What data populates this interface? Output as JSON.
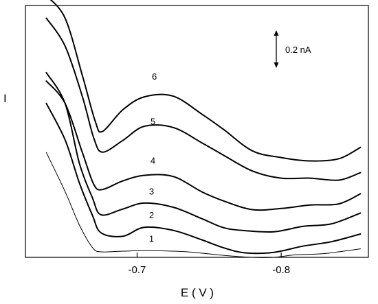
{
  "chart_data": {
    "type": "line",
    "title": "",
    "xlabel": "E ( V )",
    "ylabel": "I",
    "xlim": [
      -0.6225,
      -0.8605
    ],
    "ylim": [
      0.0,
      1.8
    ],
    "x_ticks": [
      -0.7,
      -0.8
    ],
    "x_tick_labels": [
      "-0.7",
      "-0.8"
    ],
    "y_ticks_shown": false,
    "grid": false,
    "legend": "none",
    "scale_bar": {
      "label": "0.2 nA",
      "value": 0.2
    },
    "series": [
      {
        "name": "1",
        "stroke_width": 1,
        "points": [
          [
            -0.637,
            0.75
          ],
          [
            -0.65,
            0.47
          ],
          [
            -0.66,
            0.23
          ],
          [
            -0.669,
            0.07
          ],
          [
            -0.675,
            0.039
          ],
          [
            -0.69,
            0.044
          ],
          [
            -0.71,
            0.048
          ],
          [
            -0.735,
            0.039
          ],
          [
            -0.76,
            0.014
          ],
          [
            -0.78,
            0.0
          ],
          [
            -0.795,
            0.0
          ],
          [
            -0.81,
            0.018
          ],
          [
            -0.83,
            0.027
          ],
          [
            -0.855,
            0.061
          ]
        ]
      },
      {
        "name": "2",
        "stroke_width": 2,
        "points": [
          [
            -0.637,
            1.1
          ],
          [
            -0.65,
            0.84
          ],
          [
            -0.66,
            0.53
          ],
          [
            -0.669,
            0.3
          ],
          [
            -0.675,
            0.175
          ],
          [
            -0.69,
            0.15
          ],
          [
            -0.705,
            0.215
          ],
          [
            -0.725,
            0.193
          ],
          [
            -0.745,
            0.125
          ],
          [
            -0.76,
            0.068
          ],
          [
            -0.775,
            0.032
          ],
          [
            -0.795,
            0.036
          ],
          [
            -0.815,
            0.08
          ],
          [
            -0.835,
            0.112
          ],
          [
            -0.855,
            0.167
          ]
        ]
      },
      {
        "name": "3",
        "stroke_width": 2,
        "points": [
          [
            -0.637,
            1.32
          ],
          [
            -0.65,
            1.1
          ],
          [
            -0.66,
            0.67
          ],
          [
            -0.669,
            0.425
          ],
          [
            -0.675,
            0.304
          ],
          [
            -0.69,
            0.345
          ],
          [
            -0.705,
            0.388
          ],
          [
            -0.725,
            0.358
          ],
          [
            -0.745,
            0.276
          ],
          [
            -0.76,
            0.212
          ],
          [
            -0.775,
            0.191
          ],
          [
            -0.795,
            0.183
          ],
          [
            -0.815,
            0.221
          ],
          [
            -0.835,
            0.24
          ],
          [
            -0.855,
            0.317
          ]
        ]
      },
      {
        "name": "4",
        "stroke_width": 2,
        "points": [
          [
            -0.637,
            1.26
          ],
          [
            -0.65,
            1.1
          ],
          [
            -0.662,
            0.75
          ],
          [
            -0.67,
            0.52
          ],
          [
            -0.676,
            0.485
          ],
          [
            -0.69,
            0.546
          ],
          [
            -0.705,
            0.586
          ],
          [
            -0.725,
            0.578
          ],
          [
            -0.745,
            0.468
          ],
          [
            -0.76,
            0.403
          ],
          [
            -0.78,
            0.341
          ],
          [
            -0.8,
            0.349
          ],
          [
            -0.82,
            0.374
          ],
          [
            -0.84,
            0.382
          ],
          [
            -0.855,
            0.454
          ]
        ]
      },
      {
        "name": "5",
        "stroke_width": 2,
        "points": [
          [
            -0.637,
            1.71
          ],
          [
            -0.65,
            1.51
          ],
          [
            -0.662,
            1.15
          ],
          [
            -0.67,
            0.85
          ],
          [
            -0.676,
            0.752
          ],
          [
            -0.69,
            0.835
          ],
          [
            -0.705,
            0.937
          ],
          [
            -0.725,
            0.928
          ],
          [
            -0.745,
            0.818
          ],
          [
            -0.76,
            0.73
          ],
          [
            -0.78,
            0.617
          ],
          [
            -0.8,
            0.566
          ],
          [
            -0.82,
            0.566
          ],
          [
            -0.84,
            0.552
          ],
          [
            -0.855,
            0.605
          ]
        ]
      },
      {
        "name": "6",
        "stroke_width": 2,
        "points": [
          [
            -0.637,
            1.87
          ],
          [
            -0.65,
            1.71
          ],
          [
            -0.662,
            1.3
          ],
          [
            -0.671,
            0.97
          ],
          [
            -0.676,
            0.9
          ],
          [
            -0.69,
            1.054
          ],
          [
            -0.705,
            1.147
          ],
          [
            -0.725,
            1.152
          ],
          [
            -0.745,
            1.023
          ],
          [
            -0.76,
            0.914
          ],
          [
            -0.78,
            0.761
          ],
          [
            -0.8,
            0.713
          ],
          [
            -0.82,
            0.689
          ],
          [
            -0.84,
            0.705
          ],
          [
            -0.855,
            0.786
          ]
        ]
      }
    ],
    "curve_labels": [
      {
        "text": "1",
        "x": -0.71,
        "y": 0.11
      },
      {
        "text": "2",
        "x": -0.71,
        "y": 0.28
      },
      {
        "text": "3",
        "x": -0.71,
        "y": 0.45
      },
      {
        "text": "4",
        "x": -0.711,
        "y": 0.67
      },
      {
        "text": "5",
        "x": -0.711,
        "y": 0.95
      },
      {
        "text": "6",
        "x": -0.712,
        "y": 1.27
      }
    ]
  }
}
